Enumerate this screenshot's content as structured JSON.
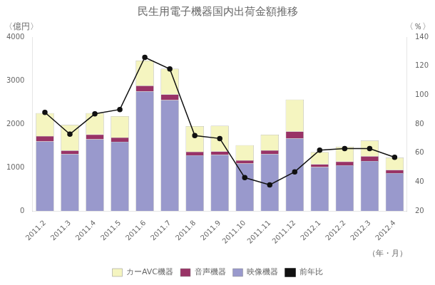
{
  "chart_data": {
    "type": "bar",
    "title": "民生用電子機器国内出荷金額推移",
    "xlabel": "（年・月）",
    "ylabel": "〈億円〉",
    "y2label": "〈％〉",
    "categories": [
      "2011.2",
      "2011.3",
      "2011.4",
      "2011.5",
      "2011.6",
      "2011.7",
      "2011.8",
      "2011.9",
      "2011.10",
      "2011.11",
      "2011.12",
      "2012.1",
      "2012.2",
      "2012.3",
      "2012.4"
    ],
    "series": [
      {
        "name": "カーAVC機器",
        "color": "#f5f5c0",
        "values": [
          530,
          590,
          490,
          490,
          580,
          590,
          590,
          590,
          350,
          360,
          730,
          280,
          340,
          360,
          280
        ]
      },
      {
        "name": "音声機器",
        "color": "#993366",
        "values": [
          120,
          80,
          110,
          100,
          130,
          130,
          80,
          80,
          75,
          85,
          160,
          65,
          85,
          110,
          75
        ]
      },
      {
        "name": "映像機器",
        "color": "#9999cc",
        "values": [
          1600,
          1310,
          1650,
          1590,
          2750,
          2550,
          1280,
          1290,
          1090,
          1310,
          1670,
          1010,
          1050,
          1150,
          870
        ]
      },
      {
        "name": "前年比",
        "type": "line",
        "axis": "y2",
        "color": "#111111",
        "marker": "circle",
        "line_style": "solid",
        "values": [
          88,
          73,
          87,
          90,
          126,
          118,
          72,
          70,
          43,
          38,
          47,
          62,
          63,
          63,
          57
        ]
      }
    ],
    "stacked": true,
    "ylim": [
      0,
      4000
    ],
    "yticks": [
      0,
      1000,
      2000,
      3000,
      4000
    ],
    "y2lim": [
      20,
      140
    ],
    "y2ticks": [
      20,
      40,
      60,
      80,
      100,
      120,
      140
    ],
    "grid": false,
    "legend": "bottom"
  }
}
